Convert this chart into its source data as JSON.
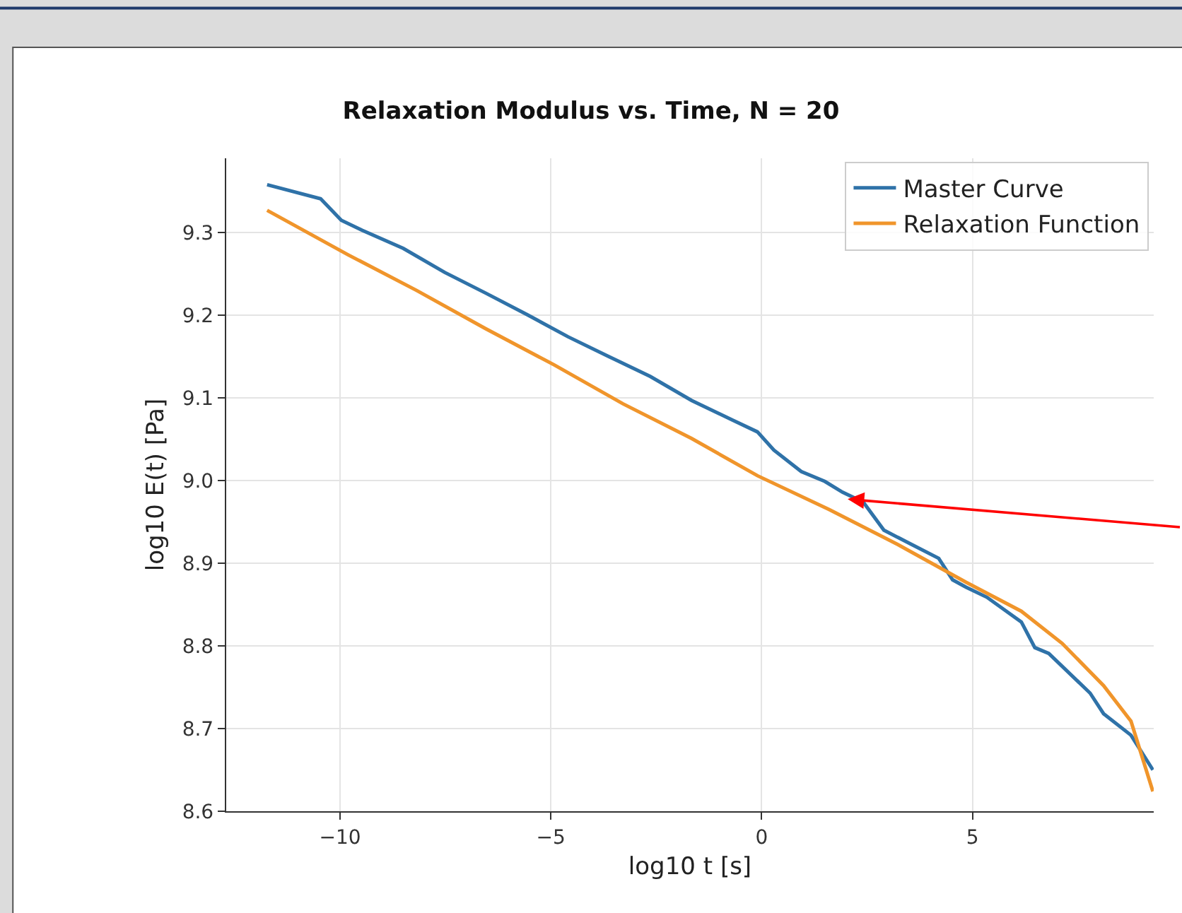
{
  "chart_data": {
    "type": "line",
    "title": "Relaxation Modulus vs. Time, N = 20",
    "xlabel": "log10 t [s]",
    "ylabel": "log10 E(t) [Pa]",
    "xlim": [
      -12.7,
      9.3
    ],
    "xticks": [
      -10,
      -5,
      0,
      5
    ],
    "ylim": [
      8.6,
      9.39
    ],
    "yticks": [
      8.6,
      8.7,
      8.8,
      8.9,
      {
        "value": 9.0,
        "label": "9.0"
      },
      9.1,
      9.2,
      9.3
    ],
    "grid": true,
    "legend": "top right",
    "line_style": "solid",
    "marker": "none",
    "series": [
      {
        "name": "Master Curve",
        "color": "#2f72a8",
        "x": [
          -11.73,
          -10.46,
          -9.97,
          -9.48,
          -8.5,
          -7.52,
          -6.55,
          -5.57,
          -4.59,
          -3.62,
          -2.64,
          -1.66,
          -0.68,
          -0.1,
          0.29,
          0.94,
          1.5,
          1.92,
          2.41,
          2.9,
          3.55,
          4.2,
          4.53,
          4.85,
          5.34,
          6.16,
          6.48,
          6.81,
          7.79,
          8.11,
          8.76,
          9.28
        ],
        "values": [
          9.358,
          9.341,
          9.315,
          9.303,
          9.281,
          9.252,
          9.227,
          9.201,
          9.174,
          9.15,
          9.126,
          9.097,
          9.073,
          9.059,
          9.037,
          9.011,
          8.999,
          8.986,
          8.974,
          8.94,
          8.923,
          8.906,
          8.88,
          8.871,
          8.859,
          8.829,
          8.798,
          8.791,
          8.743,
          8.718,
          8.692,
          8.65
        ]
      },
      {
        "name": "Relaxation Function",
        "color": "#f0952b",
        "x": [
          -11.73,
          -9.8,
          -8.18,
          -6.55,
          -4.92,
          -3.29,
          -1.66,
          -0.1,
          1.6,
          3.22,
          4.85,
          6.16,
          7.13,
          8.11,
          8.76,
          9.28
        ],
        "values": [
          9.327,
          9.273,
          9.23,
          9.184,
          9.14,
          9.093,
          9.051,
          9.006,
          8.965,
          8.923,
          8.877,
          8.842,
          8.803,
          8.752,
          8.709,
          8.624
        ]
      }
    ]
  }
}
